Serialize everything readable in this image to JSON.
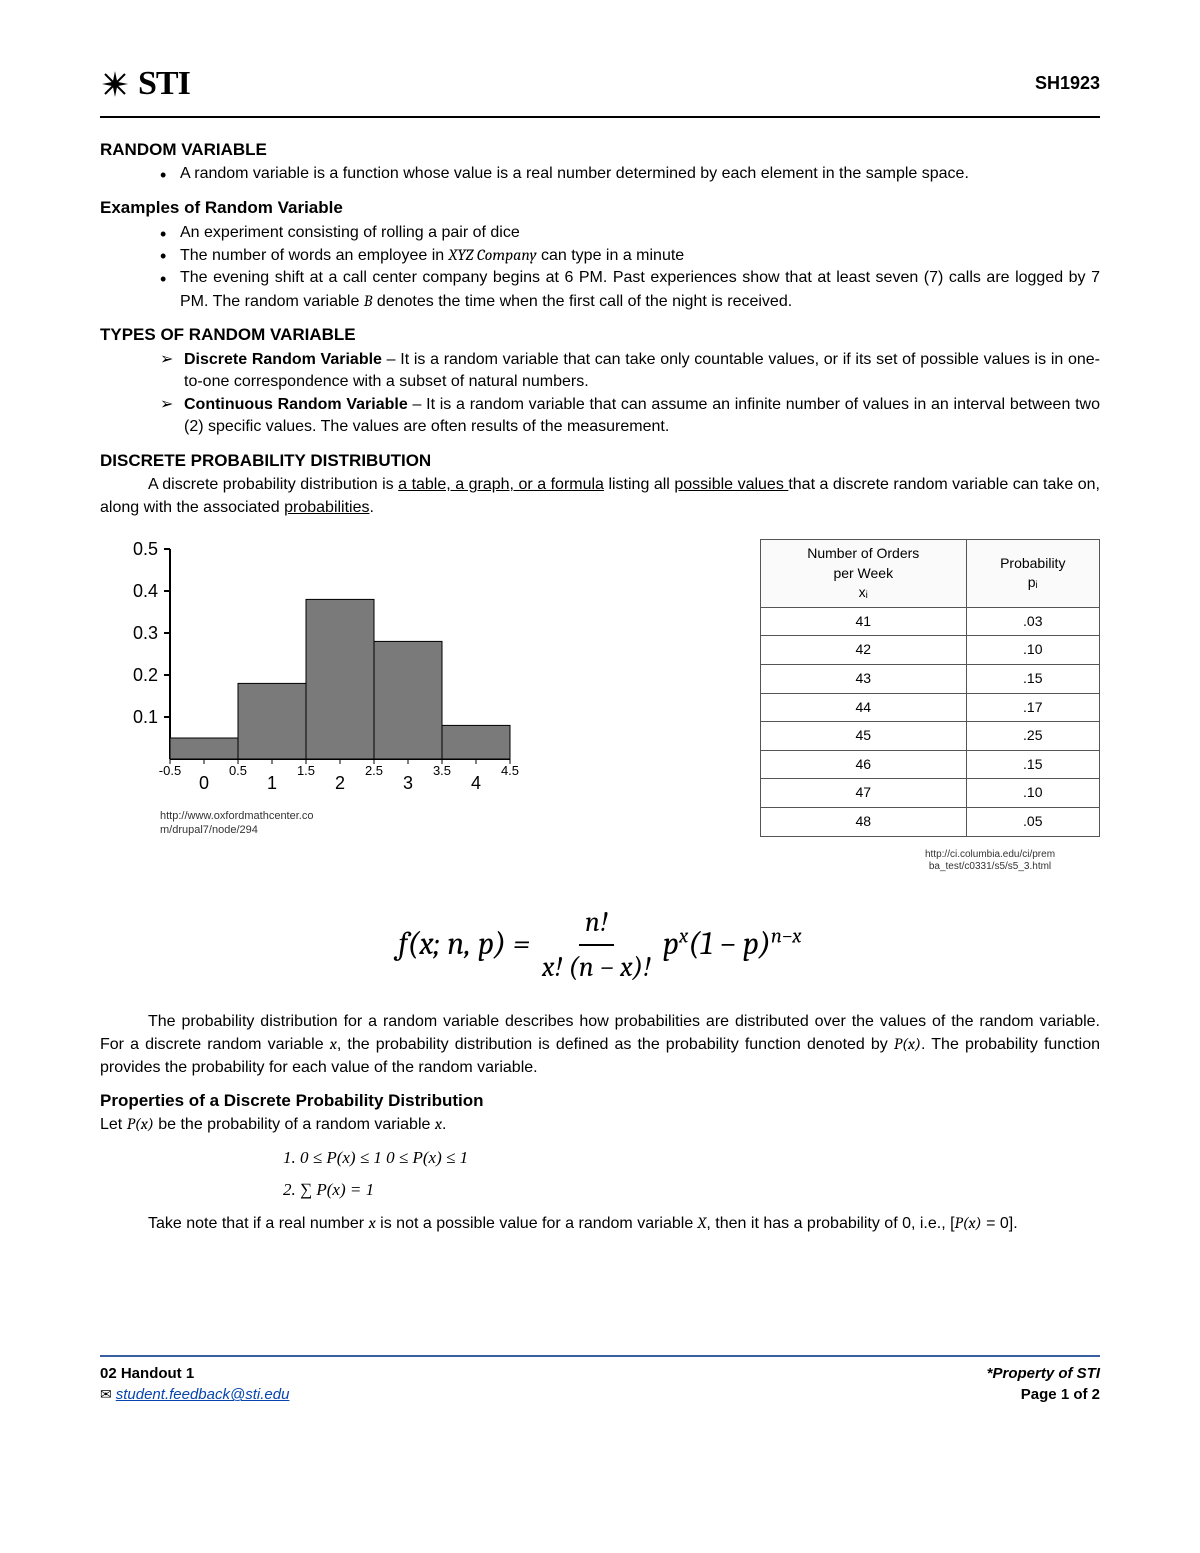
{
  "header": {
    "logo_text": "STI",
    "doc_code": "SH1923"
  },
  "sections": {
    "rv_title": "RANDOM VARIABLE",
    "rv_def": "A random variable is a function whose value is a real number determined by each element in the sample space.",
    "examples_title": "Examples of Random Variable",
    "examples": [
      "An experiment consisting of rolling a pair of dice",
      "The number of words an employee in XYZ Company can type in a minute",
      "The evening shift at a call center company begins at 6 PM. Past experiences show that at least seven (7) calls are logged by 7 PM. The random variable B denotes the time when the first call of the night is received."
    ],
    "types_title": "TYPES OF RANDOM VARIABLE",
    "types": [
      {
        "name": "Discrete Random Variable",
        "desc": " – It is a random variable that can take only countable values, or if its set of possible values is in one-to-one correspondence with a subset of natural numbers."
      },
      {
        "name": "Continuous Random Variable",
        "desc": " – It is a random variable that can assume an infinite number of values in an interval between two (2) specific values. The values are often results of the measurement."
      }
    ],
    "dpd_title": "DISCRETE PROBABILITY DISTRIBUTION",
    "dpd_intro_1": "A discrete probability distribution is ",
    "dpd_intro_u1": "a table, a graph, or a formula",
    "dpd_intro_2": " listing all ",
    "dpd_intro_u2": "possible values ",
    "dpd_intro_3": "that a discrete random variable can take on, along with the associated ",
    "dpd_intro_u3": "probabilities",
    "dpd_intro_4": ".",
    "chart": {
      "type": "bar",
      "x_labels": [
        "-0.5",
        "0",
        "0.5",
        "1",
        "1.5",
        "2",
        "2.5",
        "3",
        "3.5",
        "4",
        "4.5"
      ],
      "y_ticks": [
        "0.1",
        "0.2",
        "0.3",
        "0.4",
        "0.5"
      ],
      "bars": [
        {
          "x": 0,
          "h": 0.05
        },
        {
          "x": 1,
          "h": 0.18
        },
        {
          "x": 2,
          "h": 0.38
        },
        {
          "x": 3,
          "h": 0.28
        },
        {
          "x": 4,
          "h": 0.08
        }
      ],
      "bar_color": "#7a7a7a",
      "axis_color": "#000000",
      "caption": "http://www.oxfordmathcenter.co\nm/drupal7/node/294"
    },
    "table": {
      "headers": [
        "Number of Orders\nper Week\nxᵢ",
        "Probability\npᵢ"
      ],
      "rows": [
        [
          "41",
          ".03"
        ],
        [
          "42",
          ".10"
        ],
        [
          "43",
          ".15"
        ],
        [
          "44",
          ".17"
        ],
        [
          "45",
          ".25"
        ],
        [
          "46",
          ".15"
        ],
        [
          "47",
          ".10"
        ],
        [
          "48",
          ".05"
        ]
      ],
      "caption": "http://ci.columbia.edu/ci/prem\nba_test/c0331/s5/s5_3.html"
    },
    "formula": {
      "lhs": "f(x; n, p) = ",
      "num": "n!",
      "den": "x! (n − x)!",
      "rhs1": " p",
      "exp1": "x",
      "rhs2": "(1 − p)",
      "exp2": "n−x"
    },
    "dpd_para": "The probability distribution for a random variable describes how probabilities are distributed over the values of the random variable. For a discrete random variable x, the probability distribution is defined as the probability function denoted by P(x). The probability function provides the probability for each value of the random variable.",
    "props_title": "Properties of a Discrete Probability Distribution",
    "props_intro": "Let P(x) be the probability of a random variable x.",
    "props": [
      "0 ≤ P(x) ≤ 1 0 ≤ P(x) ≤ 1",
      "∑ P(x) = 1"
    ],
    "note": "Take note that if a real number x is not a possible value for a random variable X, then it has a probability of 0, i.e., [P(x) = 0]."
  },
  "footer": {
    "handout": "02 Handout 1",
    "email": "student.feedback@sti.edu",
    "property": "*Property of STI",
    "page": "Page 1 of 2"
  }
}
